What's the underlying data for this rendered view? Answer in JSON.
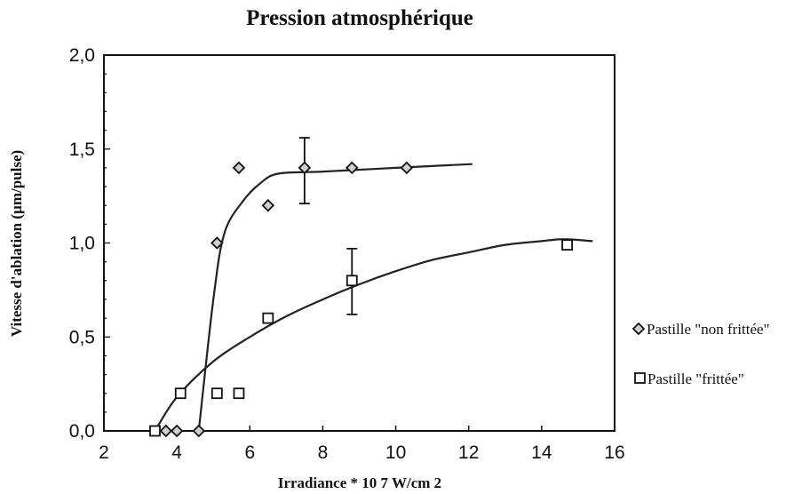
{
  "chart_data": {
    "type": "scatter",
    "title": "Pression atmosphérique",
    "xlabel": "Irradiance * 10 7  W/cm 2",
    "ylabel": "Vitesse d'ablation (µm/pulse)",
    "xlim": [
      2,
      16
    ],
    "ylim": [
      0,
      2
    ],
    "x_ticks": [
      "2",
      "4",
      "6",
      "8",
      "10",
      "12",
      "14",
      "16"
    ],
    "y_ticks": [
      "0,0",
      "0,5",
      "1,0",
      "1,5",
      "2,0"
    ],
    "grid": false,
    "legend_position": "right",
    "series": [
      {
        "name": "Pastille \"non frittée\"",
        "marker": "diamond",
        "color": "#222222",
        "points": [
          {
            "x": 3.7,
            "y": 0.0
          },
          {
            "x": 4.0,
            "y": 0.0
          },
          {
            "x": 4.6,
            "y": 0.0
          },
          {
            "x": 5.1,
            "y": 1.0
          },
          {
            "x": 5.7,
            "y": 1.4
          },
          {
            "x": 6.5,
            "y": 1.2
          },
          {
            "x": 7.5,
            "y": 1.4
          },
          {
            "x": 8.8,
            "y": 1.4
          },
          {
            "x": 10.3,
            "y": 1.4
          }
        ],
        "error_bars": [
          {
            "x": 7.5,
            "low": 1.21,
            "high": 1.56
          }
        ],
        "fit_curve": [
          {
            "x": 4.6,
            "y": 0.0
          },
          {
            "x": 5.0,
            "y": 0.7
          },
          {
            "x": 5.3,
            "y": 1.05
          },
          {
            "x": 5.8,
            "y": 1.22
          },
          {
            "x": 6.3,
            "y": 1.32
          },
          {
            "x": 6.8,
            "y": 1.37
          },
          {
            "x": 8.0,
            "y": 1.38
          },
          {
            "x": 10.0,
            "y": 1.4
          },
          {
            "x": 12.1,
            "y": 1.42
          }
        ]
      },
      {
        "name": "Pastille \"frittée\"",
        "marker": "square",
        "color": "#222222",
        "points": [
          {
            "x": 3.4,
            "y": 0.0
          },
          {
            "x": 4.1,
            "y": 0.2
          },
          {
            "x": 5.1,
            "y": 0.2
          },
          {
            "x": 5.7,
            "y": 0.2
          },
          {
            "x": 6.5,
            "y": 0.6
          },
          {
            "x": 8.8,
            "y": 0.8
          },
          {
            "x": 14.7,
            "y": 0.99
          }
        ],
        "error_bars": [
          {
            "x": 8.8,
            "low": 0.62,
            "high": 0.97
          }
        ],
        "fit_curve": [
          {
            "x": 3.4,
            "y": 0.0
          },
          {
            "x": 4.0,
            "y": 0.18
          },
          {
            "x": 5.0,
            "y": 0.37
          },
          {
            "x": 6.0,
            "y": 0.5
          },
          {
            "x": 7.0,
            "y": 0.61
          },
          {
            "x": 8.0,
            "y": 0.7
          },
          {
            "x": 9.0,
            "y": 0.78
          },
          {
            "x": 10.0,
            "y": 0.85
          },
          {
            "x": 11.0,
            "y": 0.91
          },
          {
            "x": 12.0,
            "y": 0.95
          },
          {
            "x": 13.0,
            "y": 0.99
          },
          {
            "x": 14.0,
            "y": 1.01
          },
          {
            "x": 14.6,
            "y": 1.02
          },
          {
            "x": 15.4,
            "y": 1.01
          }
        ]
      }
    ]
  }
}
